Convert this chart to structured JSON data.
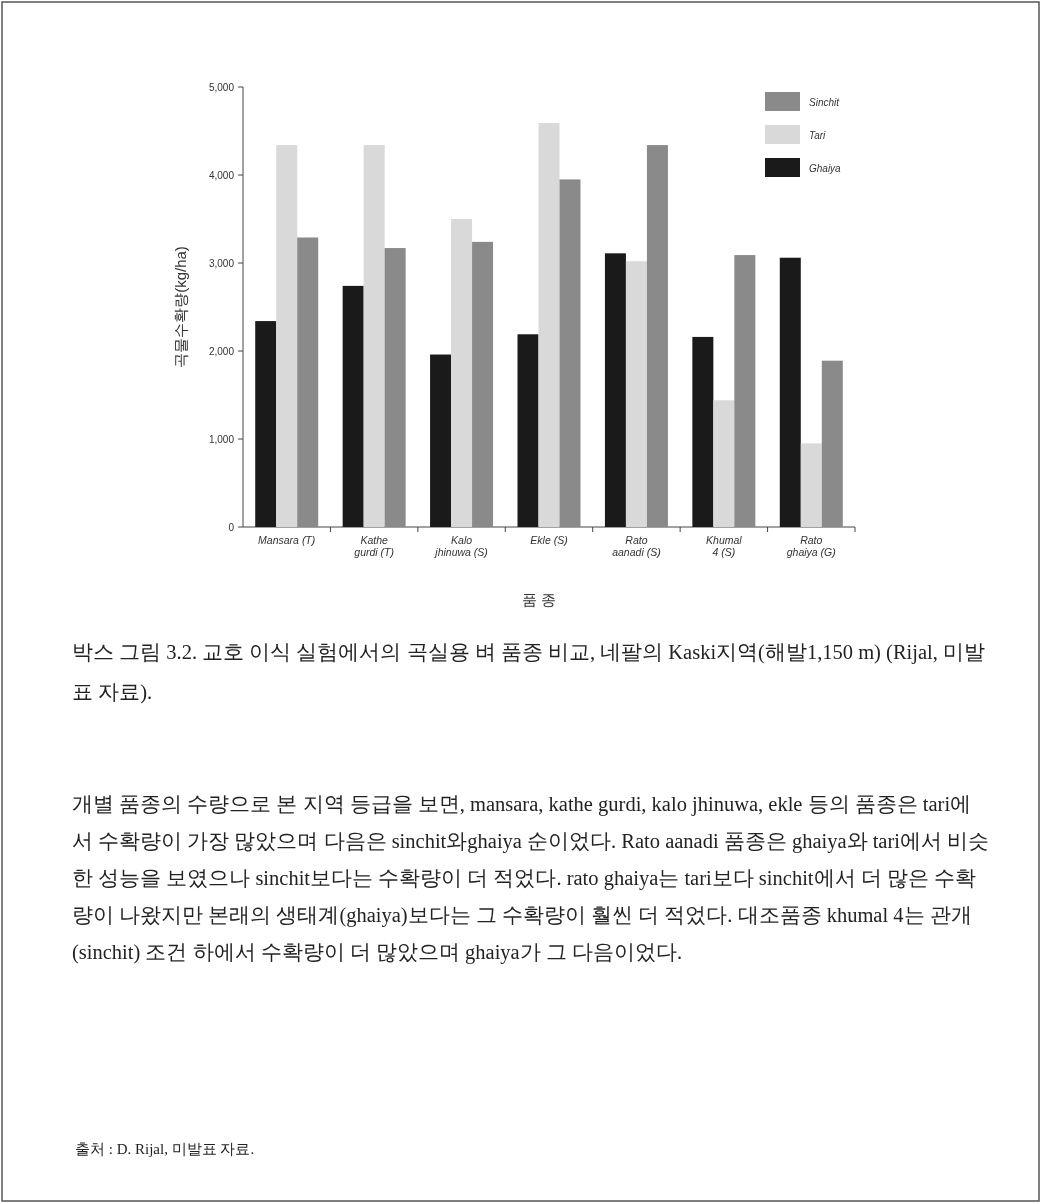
{
  "chart_data": {
    "type": "bar",
    "xlabel": "품 종",
    "ylabel": "곡물수확량(kg/ha)",
    "categories": [
      "Mansara (T)",
      "Kathe\ngurdi (T)",
      "Kalo\njhinuwa (S)",
      "Ekle (S)",
      "Rato\naanadi (S)",
      "Khumal\n4 (S)",
      "Rato\nghaiya (G)"
    ],
    "series": [
      {
        "name": "Ghaiya",
        "color": "#1a1a1a",
        "values": [
          2340,
          2740,
          1960,
          2190,
          3110,
          2160,
          3060
        ]
      },
      {
        "name": "Tari",
        "color": "#d9d9d9",
        "values": [
          4340,
          4340,
          3500,
          4590,
          3020,
          1440,
          950
        ]
      },
      {
        "name": "Sinchit",
        "color": "#8a8a8a",
        "values": [
          3290,
          3170,
          3240,
          3950,
          4340,
          3090,
          1890
        ]
      }
    ],
    "ylim": [
      0,
      5000
    ],
    "yticks": [
      0,
      {
        "value": 1000,
        "label": "1,000"
      },
      {
        "value": 2000,
        "label": "2,000"
      },
      {
        "value": 3000,
        "label": "3,000"
      },
      {
        "value": 4000,
        "label": "4,000"
      },
      {
        "value": 5000,
        "label": "5,000"
      }
    ],
    "legend": "top right",
    "annotations": [
      "박스 그림 3.2.  교호 이식 실험에서의 곡실용 벼 품종 비교, 네팔의 Kaski지역(해발1,150 m) (Rijal, 미발표 자료).",
      "개별 품종의 수량으로 본 지역 등급을 보면, mansara, kathe gurdi, kalo jhinuwa, ekle 등의 품종은 tari에서 수확량이 가장 많았으며 다음은 sinchit와ghaiya 순이었다. Rato aanadi 품종은 ghaiya와 tari에서 비슷한 성능을 보였으나 sinchit보다는 수확량이 더 적었다. rato ghaiya는 tari보다 sinchit에서 더 많은 수확량이 나왔지만 본래의 생태계(ghaiya)보다는 그 수확량이 훨씬 더 적었다. 대조품종 khumal 4는 관개(sinchit) 조건 하에서 수확량이 더 많았으며 ghaiya가 그 다음이었다.",
      "출처 : D. Rijal, 미발표 자료."
    ]
  }
}
